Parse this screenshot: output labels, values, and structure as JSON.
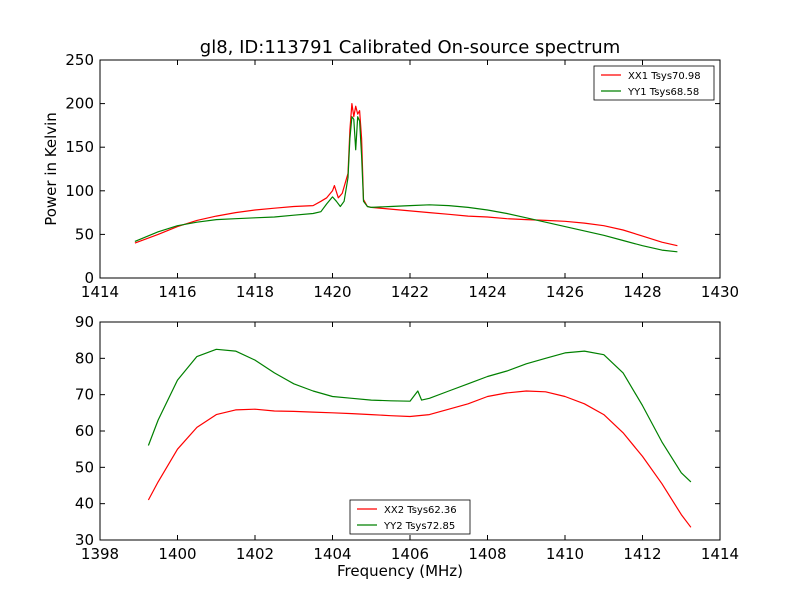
{
  "figure": {
    "title": "gl8, ID:113791 Calibrated On-source spectrum"
  },
  "chart_data": [
    {
      "type": "line",
      "title": "gl8, ID:113791 Calibrated On-source spectrum",
      "xlabel": "",
      "ylabel": "Power in Kelvin",
      "xlim": [
        1414,
        1430
      ],
      "ylim": [
        0,
        250
      ],
      "xticks": [
        "1414",
        "1416",
        "1418",
        "1420",
        "1422",
        "1424",
        "1426",
        "1428",
        "1430"
      ],
      "yticks": [
        "0",
        "50",
        "100",
        "150",
        "200",
        "250"
      ],
      "legend_position": "top-right",
      "grid": false,
      "series": [
        {
          "name": "XX1 Tsys70.98",
          "color": "#ff0000",
          "x": [
            1414.9,
            1415.5,
            1416.0,
            1416.5,
            1417.0,
            1417.5,
            1418.0,
            1418.5,
            1419.0,
            1419.5,
            1419.7,
            1419.85,
            1420.0,
            1420.05,
            1420.15,
            1420.25,
            1420.4,
            1420.45,
            1420.5,
            1420.55,
            1420.6,
            1420.65,
            1420.7,
            1420.75,
            1420.8,
            1420.9,
            1421.0,
            1421.5,
            1422.0,
            1422.5,
            1423.0,
            1423.5,
            1424.0,
            1424.5,
            1425.0,
            1425.5,
            1426.0,
            1426.5,
            1427.0,
            1427.5,
            1428.0,
            1428.5,
            1428.9
          ],
          "y": [
            40,
            50,
            59,
            66,
            71,
            75,
            78,
            80,
            82,
            83,
            88,
            92,
            100,
            106,
            92,
            97,
            120,
            170,
            200,
            185,
            197,
            188,
            192,
            160,
            90,
            82,
            81,
            79,
            77,
            75,
            73,
            71,
            70,
            68,
            67,
            66,
            65,
            63,
            60,
            55,
            48,
            41,
            37
          ]
        },
        {
          "name": "YY1 Tsys68.58",
          "color": "#008000",
          "x": [
            1414.9,
            1415.5,
            1416.0,
            1416.5,
            1417.0,
            1417.5,
            1418.0,
            1418.5,
            1419.0,
            1419.5,
            1419.7,
            1419.85,
            1420.0,
            1420.1,
            1420.2,
            1420.3,
            1420.4,
            1420.45,
            1420.5,
            1420.55,
            1420.6,
            1420.65,
            1420.7,
            1420.75,
            1420.8,
            1420.9,
            1421.0,
            1421.5,
            1422.0,
            1422.5,
            1423.0,
            1423.5,
            1424.0,
            1424.5,
            1425.0,
            1425.5,
            1426.0,
            1426.5,
            1427.0,
            1427.5,
            1428.0,
            1428.5,
            1428.9
          ],
          "y": [
            42,
            53,
            60,
            64,
            67,
            68,
            69,
            70,
            72,
            74,
            76,
            85,
            93,
            88,
            82,
            88,
            115,
            160,
            185,
            182,
            147,
            185,
            180,
            140,
            88,
            82,
            81,
            82,
            83,
            84,
            83,
            81,
            78,
            74,
            69,
            64,
            59,
            54,
            49,
            43,
            37,
            32,
            30
          ]
        }
      ]
    },
    {
      "type": "line",
      "title": "",
      "xlabel": "Frequency (MHz)",
      "ylabel": "",
      "xlim": [
        1398,
        1414
      ],
      "ylim": [
        30,
        90
      ],
      "xticks": [
        "1398",
        "1400",
        "1402",
        "1404",
        "1406",
        "1408",
        "1410",
        "1412",
        "1414"
      ],
      "yticks": [
        "30",
        "40",
        "50",
        "60",
        "70",
        "80",
        "90"
      ],
      "legend_position": "bottom-center",
      "grid": false,
      "series": [
        {
          "name": "XX2 Tsys62.36",
          "color": "#ff0000",
          "x": [
            1399.25,
            1399.5,
            1400.0,
            1400.5,
            1401.0,
            1401.5,
            1402.0,
            1402.5,
            1403.0,
            1403.5,
            1404.0,
            1404.5,
            1405.0,
            1405.5,
            1406.0,
            1406.5,
            1407.0,
            1407.5,
            1408.0,
            1408.5,
            1409.0,
            1409.5,
            1410.0,
            1410.5,
            1411.0,
            1411.5,
            1412.0,
            1412.5,
            1413.0,
            1413.25
          ],
          "y": [
            41,
            46,
            55,
            61,
            64.5,
            65.8,
            66,
            65.5,
            65.4,
            65.2,
            65,
            64.8,
            64.5,
            64.2,
            64,
            64.5,
            66,
            67.5,
            69.5,
            70.5,
            71,
            70.8,
            69.5,
            67.5,
            64.5,
            59.5,
            53,
            45.5,
            37,
            33.5
          ]
        },
        {
          "name": "YY2 Tsys72.85",
          "color": "#008000",
          "x": [
            1399.25,
            1399.5,
            1400.0,
            1400.5,
            1401.0,
            1401.5,
            1402.0,
            1402.5,
            1403.0,
            1403.5,
            1404.0,
            1404.5,
            1405.0,
            1405.5,
            1406.0,
            1406.2,
            1406.3,
            1406.5,
            1407.0,
            1407.5,
            1408.0,
            1408.5,
            1409.0,
            1409.5,
            1410.0,
            1410.5,
            1411.0,
            1411.5,
            1412.0,
            1412.5,
            1413.0,
            1413.25
          ],
          "y": [
            56,
            63,
            74,
            80.5,
            82.5,
            82,
            79.5,
            76,
            73,
            71,
            69.5,
            69,
            68.5,
            68.3,
            68.2,
            71,
            68.5,
            69,
            71,
            73,
            75,
            76.5,
            78.5,
            80,
            81.5,
            82,
            81,
            76,
            67,
            57,
            48.5,
            46
          ]
        }
      ]
    }
  ]
}
